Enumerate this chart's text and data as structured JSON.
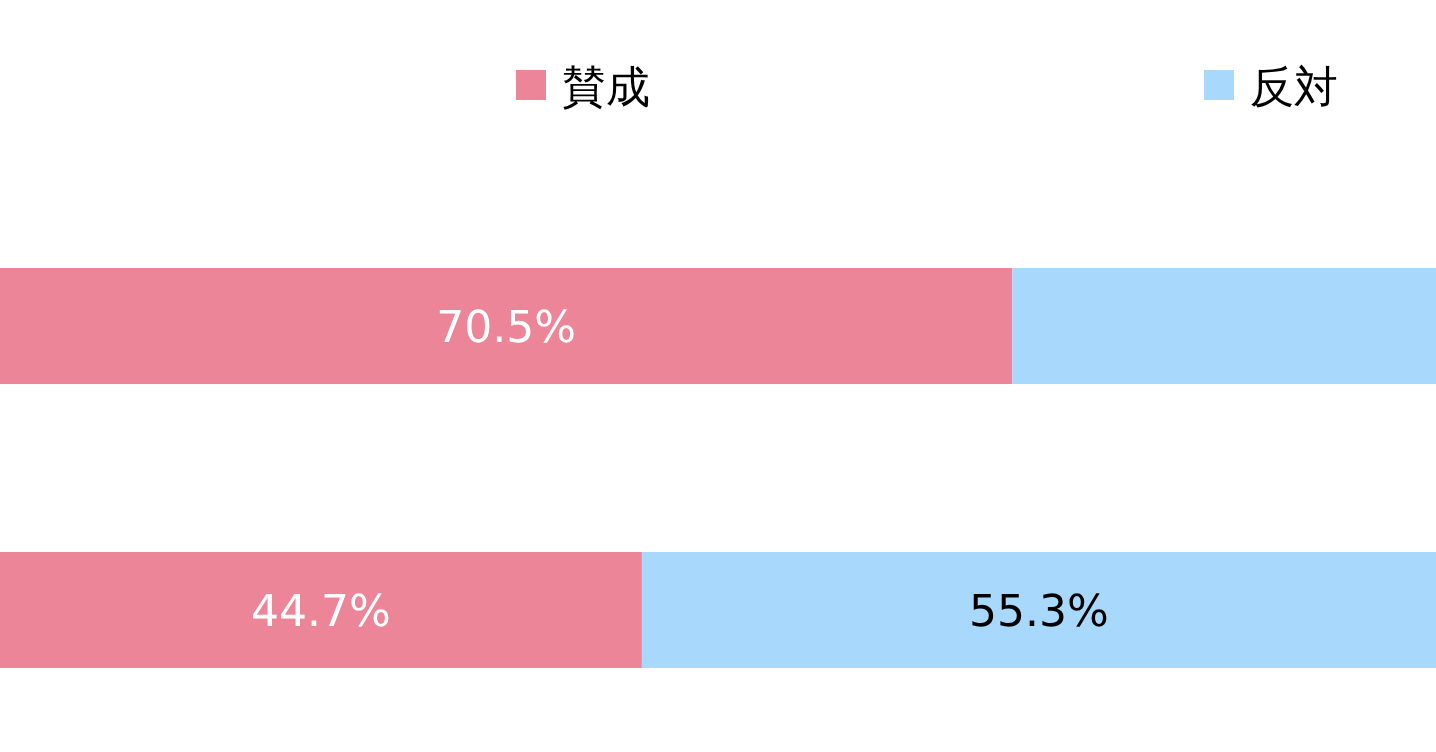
{
  "chart_data": {
    "type": "bar",
    "orientation": "horizontal",
    "stacked": true,
    "categories": [
      null,
      null
    ],
    "legend": "top right",
    "series": [
      {
        "name": "賛成",
        "color": "#eb8597",
        "values": [
          70.5,
          44.7
        ],
        "value_labels": [
          "70.5%",
          "44.7%"
        ]
      },
      {
        "name": "反対",
        "color": "#a8d8fc",
        "values": [
          29.5,
          55.3
        ],
        "value_labels": [
          null,
          "55.3%"
        ]
      }
    ]
  }
}
